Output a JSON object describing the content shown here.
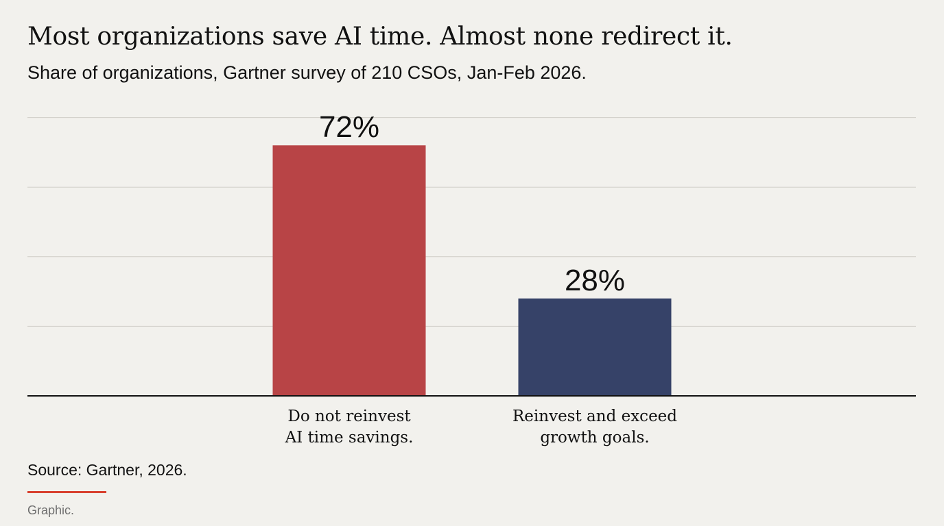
{
  "header": {
    "title": "Most organizations save AI time. Almost none redirect it.",
    "subtitle": "Share of organizations, Gartner survey of 210 CSOs, Jan-Feb 2026."
  },
  "footer": {
    "source": "Source: Gartner, 2026.",
    "credit": "Graphic.",
    "accent_color": "#d8412f"
  },
  "chart_data": {
    "type": "bar",
    "categories": [
      [
        "Do not reinvest",
        "AI time savings."
      ],
      [
        "Reinvest and exceed",
        "growth goals."
      ]
    ],
    "values": [
      72,
      28
    ],
    "value_labels": [
      "72%",
      "28%"
    ],
    "colors": [
      "#b84446",
      "#364268"
    ],
    "ylim": [
      0,
      80
    ],
    "grid": true,
    "y_tick_labels_shown": false,
    "legend": "none"
  }
}
